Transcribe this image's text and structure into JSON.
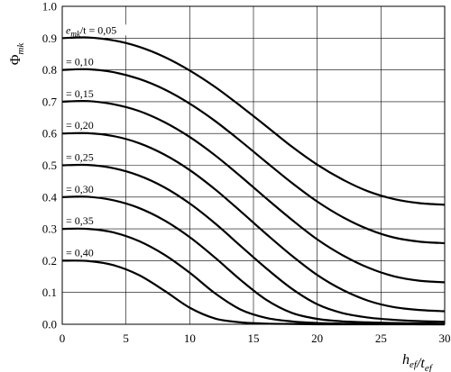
{
  "chart_data": {
    "type": "line",
    "title": "",
    "xlabel": "h_ef/t_ef",
    "ylabel": "Φ_mk",
    "xlim": [
      0,
      30
    ],
    "ylim": [
      0.0,
      1.0
    ],
    "grid": true,
    "xticks": [
      0,
      5,
      10,
      15,
      20,
      25,
      30
    ],
    "yticks": [
      "0.0",
      "0.1",
      "0.2",
      "0.3",
      "0.4",
      "0.5",
      "0.6",
      "0.7",
      "0.8",
      "0.9",
      "1.0"
    ],
    "x": [
      0,
      2,
      4,
      6,
      8,
      10,
      12,
      14,
      16,
      18,
      20,
      22,
      24,
      26,
      28,
      30
    ],
    "series": [
      {
        "name": "e_mk/t = 0,05",
        "label_prefix": "e",
        "label_sub": "mk",
        "label_rest": "/t = 0,05",
        "values": [
          0.9,
          0.902,
          0.893,
          0.873,
          0.841,
          0.798,
          0.746,
          0.686,
          0.623,
          0.559,
          0.502,
          0.455,
          0.418,
          0.394,
          0.381,
          0.376
        ]
      },
      {
        "name": "= 0,10",
        "values": [
          0.8,
          0.802,
          0.793,
          0.772,
          0.739,
          0.694,
          0.639,
          0.576,
          0.51,
          0.445,
          0.386,
          0.337,
          0.299,
          0.273,
          0.26,
          0.255
        ]
      },
      {
        "name": "= 0,15",
        "values": [
          0.7,
          0.702,
          0.692,
          0.671,
          0.636,
          0.589,
          0.531,
          0.465,
          0.396,
          0.329,
          0.267,
          0.217,
          0.178,
          0.151,
          0.137,
          0.132
        ]
      },
      {
        "name": "= 0,20",
        "values": [
          0.6,
          0.601,
          0.592,
          0.57,
          0.534,
          0.485,
          0.424,
          0.355,
          0.284,
          0.216,
          0.155,
          0.108,
          0.074,
          0.054,
          0.045,
          0.041
        ]
      },
      {
        "name": "= 0,25",
        "values": [
          0.5,
          0.501,
          0.491,
          0.468,
          0.431,
          0.38,
          0.317,
          0.246,
          0.176,
          0.112,
          0.063,
          0.035,
          0.021,
          0.014,
          0.01,
          0.008
        ]
      },
      {
        "name": "= 0,30",
        "values": [
          0.4,
          0.401,
          0.39,
          0.366,
          0.327,
          0.274,
          0.209,
          0.139,
          0.077,
          0.036,
          0.017,
          0.009,
          0.006,
          0.004,
          0.003,
          0.002
        ]
      },
      {
        "name": "= 0,35",
        "values": [
          0.3,
          0.3,
          0.289,
          0.262,
          0.219,
          0.162,
          0.097,
          0.046,
          0.02,
          0.009,
          0.004,
          0.002,
          0.001,
          0.001,
          0.0,
          0.0
        ]
      },
      {
        "name": "= 0,40",
        "values": [
          0.2,
          0.199,
          0.186,
          0.155,
          0.106,
          0.052,
          0.018,
          0.006,
          0.002,
          0.001,
          0.0,
          0.0,
          0.0,
          0.0,
          0.0,
          0.0
        ]
      }
    ]
  }
}
